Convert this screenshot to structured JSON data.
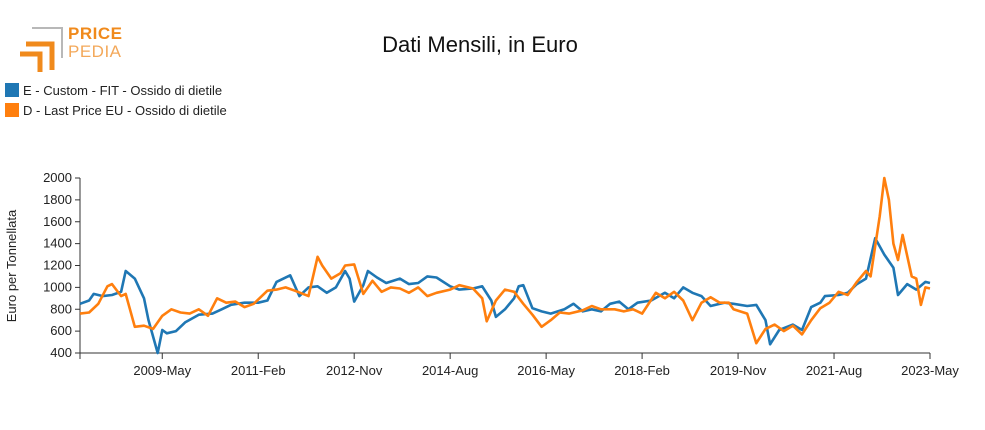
{
  "logo": {
    "text_line1": "PRICE",
    "text_line2": "PEDIA"
  },
  "colors": {
    "series1": "#1f77b4",
    "series2": "#ff7f0e",
    "logo_gray": "#b8b8b8",
    "logo_orange": "#f08a1c"
  },
  "chart_data": {
    "type": "line",
    "title": "Dati Mensili, in Euro",
    "ylabel": "Euro per Tonnellata",
    "xlabel": "",
    "ylim": [
      400,
      2000
    ],
    "yticks": [
      400,
      600,
      800,
      1000,
      1200,
      1400,
      1600,
      1800,
      2000
    ],
    "xlim": [
      "2007-11",
      "2023-05"
    ],
    "xticks": [
      "2009-May",
      "2011-Feb",
      "2012-Nov",
      "2014-Aug",
      "2016-May",
      "2018-Feb",
      "2019-Nov",
      "2021-Aug",
      "2023-May"
    ],
    "legend_placement": "top-left",
    "grid": false,
    "series": [
      {
        "name": "E - Custom - FIT - Ossido di dietile",
        "points": [
          [
            "2007-11",
            850
          ],
          [
            "2008-01",
            880
          ],
          [
            "2008-02",
            940
          ],
          [
            "2008-04",
            920
          ],
          [
            "2008-06",
            930
          ],
          [
            "2008-08",
            960
          ],
          [
            "2008-09",
            1150
          ],
          [
            "2008-11",
            1080
          ],
          [
            "2009-01",
            900
          ],
          [
            "2009-02",
            700
          ],
          [
            "2009-03",
            550
          ],
          [
            "2009-04",
            400
          ],
          [
            "2009-05",
            610
          ],
          [
            "2009-06",
            580
          ],
          [
            "2009-08",
            600
          ],
          [
            "2009-10",
            680
          ],
          [
            "2010-01",
            750
          ],
          [
            "2010-04",
            760
          ],
          [
            "2010-06",
            800
          ],
          [
            "2010-08",
            840
          ],
          [
            "2010-11",
            860
          ],
          [
            "2011-02",
            860
          ],
          [
            "2011-04",
            880
          ],
          [
            "2011-06",
            1050
          ],
          [
            "2011-09",
            1110
          ],
          [
            "2011-11",
            920
          ],
          [
            "2012-01",
            1000
          ],
          [
            "2012-03",
            1010
          ],
          [
            "2012-05",
            950
          ],
          [
            "2012-07",
            1000
          ],
          [
            "2012-09",
            1150
          ],
          [
            "2012-10",
            1080
          ],
          [
            "2012-11",
            870
          ],
          [
            "2013-01",
            1020
          ],
          [
            "2013-02",
            1150
          ],
          [
            "2013-04",
            1090
          ],
          [
            "2013-06",
            1040
          ],
          [
            "2013-09",
            1080
          ],
          [
            "2013-11",
            1030
          ],
          [
            "2014-01",
            1040
          ],
          [
            "2014-03",
            1100
          ],
          [
            "2014-05",
            1090
          ],
          [
            "2014-08",
            1010
          ],
          [
            "2014-10",
            980
          ],
          [
            "2015-01",
            990
          ],
          [
            "2015-03",
            1010
          ],
          [
            "2015-05",
            880
          ],
          [
            "2015-06",
            730
          ],
          [
            "2015-08",
            800
          ],
          [
            "2015-10",
            900
          ],
          [
            "2015-11",
            1010
          ],
          [
            "2015-12",
            1020
          ],
          [
            "2016-02",
            810
          ],
          [
            "2016-04",
            780
          ],
          [
            "2016-06",
            760
          ],
          [
            "2016-09",
            800
          ],
          [
            "2016-11",
            850
          ],
          [
            "2017-01",
            780
          ],
          [
            "2017-03",
            800
          ],
          [
            "2017-05",
            780
          ],
          [
            "2017-07",
            850
          ],
          [
            "2017-09",
            870
          ],
          [
            "2017-11",
            800
          ],
          [
            "2018-01",
            860
          ],
          [
            "2018-04",
            880
          ],
          [
            "2018-07",
            950
          ],
          [
            "2018-09",
            900
          ],
          [
            "2018-11",
            1000
          ],
          [
            "2019-01",
            950
          ],
          [
            "2019-03",
            920
          ],
          [
            "2019-05",
            830
          ],
          [
            "2019-08",
            860
          ],
          [
            "2019-10",
            850
          ],
          [
            "2020-01",
            830
          ],
          [
            "2020-03",
            840
          ],
          [
            "2020-05",
            700
          ],
          [
            "2020-06",
            480
          ],
          [
            "2020-08",
            610
          ],
          [
            "2020-11",
            660
          ],
          [
            "2021-01",
            610
          ],
          [
            "2021-03",
            820
          ],
          [
            "2021-05",
            860
          ],
          [
            "2021-06",
            920
          ],
          [
            "2021-09",
            930
          ],
          [
            "2021-11",
            950
          ],
          [
            "2022-01",
            1030
          ],
          [
            "2022-03",
            1080
          ],
          [
            "2022-05",
            1450
          ],
          [
            "2022-07",
            1300
          ],
          [
            "2022-09",
            1180
          ],
          [
            "2022-10",
            930
          ],
          [
            "2022-12",
            1030
          ],
          [
            "2023-02",
            980
          ],
          [
            "2023-04",
            1050
          ],
          [
            "2023-05",
            1040
          ]
        ]
      },
      {
        "name": "D - Last Price EU - Ossido di dietile",
        "points": [
          [
            "2007-11",
            760
          ],
          [
            "2008-01",
            770
          ],
          [
            "2008-03",
            850
          ],
          [
            "2008-05",
            1010
          ],
          [
            "2008-06",
            1030
          ],
          [
            "2008-08",
            920
          ],
          [
            "2008-09",
            940
          ],
          [
            "2008-11",
            640
          ],
          [
            "2009-01",
            650
          ],
          [
            "2009-03",
            620
          ],
          [
            "2009-05",
            740
          ],
          [
            "2009-07",
            800
          ],
          [
            "2009-09",
            770
          ],
          [
            "2009-11",
            760
          ],
          [
            "2010-01",
            800
          ],
          [
            "2010-03",
            740
          ],
          [
            "2010-05",
            900
          ],
          [
            "2010-07",
            860
          ],
          [
            "2010-09",
            870
          ],
          [
            "2010-11",
            820
          ],
          [
            "2011-01",
            850
          ],
          [
            "2011-04",
            970
          ],
          [
            "2011-06",
            980
          ],
          [
            "2011-08",
            1000
          ],
          [
            "2011-10",
            970
          ],
          [
            "2012-01",
            920
          ],
          [
            "2012-03",
            1280
          ],
          [
            "2012-04",
            1200
          ],
          [
            "2012-06",
            1080
          ],
          [
            "2012-08",
            1130
          ],
          [
            "2012-09",
            1200
          ],
          [
            "2012-11",
            1210
          ],
          [
            "2013-01",
            940
          ],
          [
            "2013-03",
            1060
          ],
          [
            "2013-05",
            960
          ],
          [
            "2013-07",
            1000
          ],
          [
            "2013-09",
            990
          ],
          [
            "2013-11",
            950
          ],
          [
            "2014-01",
            1000
          ],
          [
            "2014-03",
            920
          ],
          [
            "2014-05",
            950
          ],
          [
            "2014-08",
            980
          ],
          [
            "2014-10",
            1020
          ],
          [
            "2015-01",
            990
          ],
          [
            "2015-03",
            900
          ],
          [
            "2015-04",
            690
          ],
          [
            "2015-06",
            880
          ],
          [
            "2015-08",
            980
          ],
          [
            "2015-10",
            960
          ],
          [
            "2015-12",
            850
          ],
          [
            "2016-02",
            750
          ],
          [
            "2016-04",
            640
          ],
          [
            "2016-06",
            700
          ],
          [
            "2016-08",
            770
          ],
          [
            "2016-10",
            760
          ],
          [
            "2017-01",
            790
          ],
          [
            "2017-03",
            830
          ],
          [
            "2017-05",
            800
          ],
          [
            "2017-08",
            800
          ],
          [
            "2017-10",
            780
          ],
          [
            "2017-12",
            800
          ],
          [
            "2018-02",
            760
          ],
          [
            "2018-05",
            950
          ],
          [
            "2018-07",
            900
          ],
          [
            "2018-09",
            960
          ],
          [
            "2018-11",
            880
          ],
          [
            "2019-01",
            700
          ],
          [
            "2019-03",
            860
          ],
          [
            "2019-05",
            910
          ],
          [
            "2019-07",
            860
          ],
          [
            "2019-09",
            860
          ],
          [
            "2019-10",
            800
          ],
          [
            "2020-01",
            760
          ],
          [
            "2020-03",
            490
          ],
          [
            "2020-05",
            620
          ],
          [
            "2020-07",
            660
          ],
          [
            "2020-09",
            600
          ],
          [
            "2020-11",
            650
          ],
          [
            "2021-01",
            570
          ],
          [
            "2021-03",
            700
          ],
          [
            "2021-05",
            810
          ],
          [
            "2021-07",
            860
          ],
          [
            "2021-09",
            960
          ],
          [
            "2021-11",
            930
          ],
          [
            "2022-01",
            1050
          ],
          [
            "2022-03",
            1150
          ],
          [
            "2022-04",
            1100
          ],
          [
            "2022-06",
            1650
          ],
          [
            "2022-07",
            2000
          ],
          [
            "2022-08",
            1800
          ],
          [
            "2022-09",
            1400
          ],
          [
            "2022-10",
            1250
          ],
          [
            "2022-11",
            1480
          ],
          [
            "2023-01",
            1100
          ],
          [
            "2023-02",
            1080
          ],
          [
            "2023-03",
            840
          ],
          [
            "2023-04",
            1000
          ],
          [
            "2023-05",
            990
          ]
        ]
      }
    ]
  }
}
